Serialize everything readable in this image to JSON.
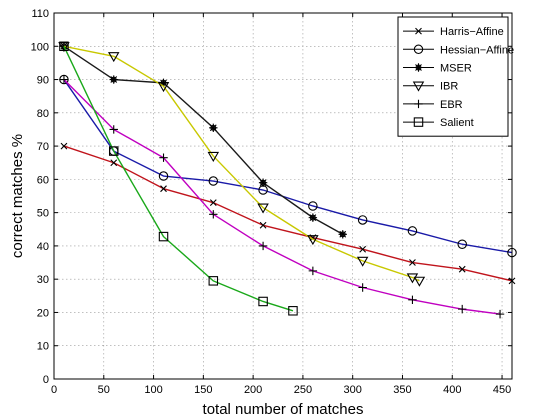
{
  "chart_data": {
    "type": "line",
    "xlabel": "total number of matches",
    "ylabel": "correct matches %",
    "xlim": [
      0,
      460
    ],
    "ylim": [
      0,
      110
    ],
    "xticks": [
      0,
      50,
      100,
      150,
      200,
      250,
      300,
      350,
      400,
      450
    ],
    "yticks": [
      0,
      10,
      20,
      30,
      40,
      50,
      60,
      70,
      80,
      90,
      100,
      110
    ],
    "grid": true,
    "legend_position": "top-right",
    "series": [
      {
        "name": "Harris−Affine",
        "color": "#c0141c",
        "marker": "x",
        "x": [
          10,
          60,
          110,
          160,
          210,
          260,
          310,
          360,
          410,
          460
        ],
        "y": [
          70,
          65,
          57.2,
          53,
          46.2,
          42.5,
          39,
          35,
          33,
          29.5
        ]
      },
      {
        "name": "Hessian−Affine",
        "color": "#1a1aa8",
        "marker": "circle",
        "x": [
          10,
          60,
          110,
          160,
          210,
          260,
          310,
          360,
          410,
          460
        ],
        "y": [
          90,
          68.5,
          61,
          59.5,
          56.8,
          52,
          47.8,
          44.5,
          40.5,
          38
        ]
      },
      {
        "name": "MSER",
        "color": "#1a1a1a",
        "marker": "star",
        "x": [
          10,
          60,
          110,
          160,
          210,
          260,
          290
        ],
        "y": [
          100,
          90,
          89,
          75.5,
          59,
          48.5,
          43.5
        ]
      },
      {
        "name": "IBR",
        "color": "#c8c800",
        "marker": "triangle-down",
        "x": [
          10,
          60,
          110,
          160,
          210,
          260,
          310,
          360,
          367
        ],
        "y": [
          100,
          97,
          88,
          67,
          51.5,
          42,
          35.5,
          30.5,
          29.5
        ]
      },
      {
        "name": "EBR",
        "color": "#c000c0",
        "marker": "plus",
        "x": [
          10,
          60,
          110,
          160,
          210,
          260,
          310,
          360,
          410,
          448
        ],
        "y": [
          90,
          75,
          66.5,
          49.5,
          40,
          32.5,
          27.5,
          23.8,
          21,
          19.5
        ]
      },
      {
        "name": "Salient",
        "color": "#1aa81a",
        "marker": "square",
        "x": [
          10,
          60,
          110,
          160,
          210,
          240
        ],
        "y": [
          100,
          68.5,
          42.8,
          29.5,
          23.3,
          20.5
        ]
      }
    ]
  }
}
